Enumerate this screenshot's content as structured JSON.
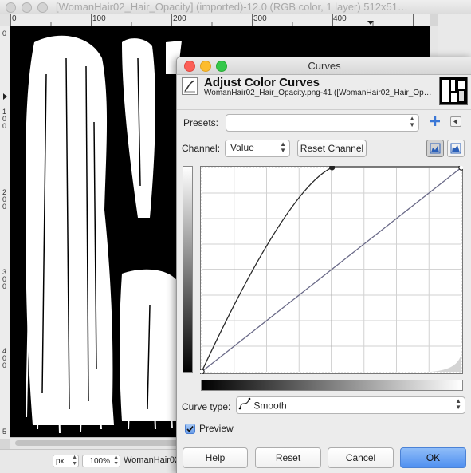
{
  "background_window": {
    "title": "[WomanHair02_Hair_Opacity] (imported)-12.0 (RGB color, 1 layer) 512x51…",
    "ruler_h_labels": [
      "0",
      "100",
      "200",
      "300",
      "400"
    ],
    "ruler_v_labels": [
      "0",
      "100",
      "200",
      "300",
      "400",
      "5"
    ],
    "statusbar": {
      "unit": "px",
      "zoom": "100%",
      "filename": "WomanHair02_Hair_Opacity"
    }
  },
  "dialog": {
    "window_title": "Curves",
    "header_title": "Adjust Color Curves",
    "header_subtitle": "WomanHair02_Hair_Opacity.png-41 ([WomanHair02_Hair_Op…",
    "presets_label": "Presets:",
    "presets_value": "",
    "channel_label": "Channel:",
    "channel_value": "Value",
    "reset_channel_label": "Reset Channel",
    "curve_type_label": "Curve type:",
    "curve_type_value": "Smooth",
    "preview_label": "Preview",
    "preview_checked": true,
    "buttons": {
      "help": "Help",
      "reset": "Reset",
      "cancel": "Cancel",
      "ok": "OK"
    },
    "curve_points": [
      [
        0,
        0
      ],
      [
        128,
        255
      ],
      [
        255,
        255
      ]
    ],
    "colors": {
      "accent": "#4f8ff0",
      "curve": "#2a2a2a",
      "diagonal": "#6a6a88"
    }
  }
}
